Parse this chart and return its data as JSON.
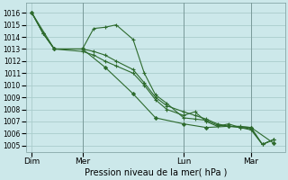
{
  "bg_color": "#cce8ea",
  "grid_color": "#aacccc",
  "line_color": "#2d6a2d",
  "xlabel": "Pression niveau de la mer( hPa )",
  "ylim": [
    1004.5,
    1016.8
  ],
  "yticks": [
    1005,
    1006,
    1007,
    1008,
    1009,
    1010,
    1011,
    1012,
    1013,
    1014,
    1015,
    1016
  ],
  "xtick_labels": [
    "Dim",
    "Mer",
    "Lun",
    "Mar"
  ],
  "xtick_positions": [
    0,
    18,
    54,
    78
  ],
  "xlim": [
    -2,
    90
  ],
  "vline_positions": [
    18,
    54,
    78
  ],
  "series": [
    {
      "x": [
        0,
        4,
        8,
        18,
        22,
        26,
        30,
        36,
        40,
        44,
        48,
        54,
        58,
        62,
        66,
        70,
        74,
        78,
        82,
        86
      ],
      "y": [
        1016.0,
        1014.3,
        1013.0,
        1013.0,
        1014.7,
        1014.8,
        1015.0,
        1013.8,
        1011.0,
        1009.2,
        1008.5,
        1007.3,
        1007.2,
        1007.1,
        1006.7,
        1006.6,
        1006.6,
        1006.5,
        1005.1,
        1005.5
      ],
      "marker": "+"
    },
    {
      "x": [
        0,
        4,
        8,
        18,
        22,
        26,
        30,
        36,
        40,
        44,
        48,
        54,
        58,
        62,
        66,
        70,
        74,
        78,
        82,
        86
      ],
      "y": [
        1016.0,
        1014.3,
        1013.0,
        1013.0,
        1012.8,
        1012.5,
        1012.0,
        1011.3,
        1010.2,
        1009.0,
        1008.3,
        1007.8,
        1007.5,
        1007.2,
        1006.8,
        1006.6,
        1006.5,
        1006.4,
        1005.1,
        1005.5
      ],
      "marker": "+"
    },
    {
      "x": [
        0,
        4,
        8,
        18,
        22,
        26,
        30,
        36,
        40,
        44,
        48,
        54,
        58,
        62,
        66,
        70,
        74,
        78,
        82,
        86
      ],
      "y": [
        1016.0,
        1014.3,
        1013.0,
        1012.8,
        1012.5,
        1012.0,
        1011.6,
        1011.0,
        1010.0,
        1008.8,
        1008.0,
        1007.5,
        1007.8,
        1007.0,
        1006.6,
        1006.8,
        1006.5,
        1006.3,
        1005.1,
        1005.5
      ],
      "marker": "+"
    },
    {
      "x": [
        0,
        8,
        18,
        26,
        36,
        44,
        54,
        62,
        70,
        78,
        86
      ],
      "y": [
        1016.0,
        1013.0,
        1013.0,
        1011.5,
        1009.3,
        1007.3,
        1006.8,
        1006.5,
        1006.6,
        1006.5,
        1005.2
      ],
      "marker": "D"
    }
  ]
}
